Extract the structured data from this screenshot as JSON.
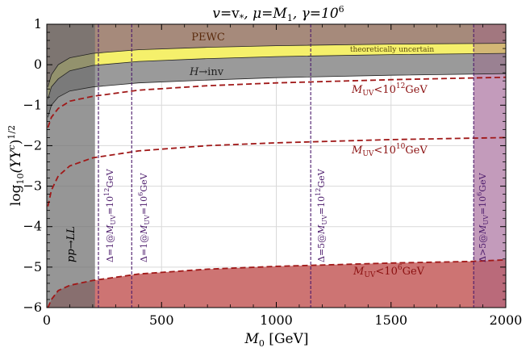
{
  "chart_data": {
    "type": "area",
    "title": "v=v*, μ=M1, γ=10^6",
    "title_parts": {
      "a": "v",
      "b": "=v",
      "c": "*",
      "d": ", μ=M",
      "e": "1",
      "f": ", γ=10",
      "g": "6"
    },
    "xlabel": {
      "main": "M",
      "sub": "0",
      "unit": " [GeV]"
    },
    "ylabel": {
      "pre": "log",
      "sub": "10",
      "mid": "(YY",
      "supc": "c",
      "post": ")",
      "sup": "1/2"
    },
    "xlim": [
      0,
      2000
    ],
    "ylim": [
      -6,
      1
    ],
    "xticks": [
      "0",
      "500",
      "1000",
      "1500",
      "2000"
    ],
    "xtick_values": [
      0,
      500,
      1000,
      1500,
      2000
    ],
    "yticks": [
      "1",
      "0",
      "−1",
      "−2",
      "−3",
      "−4",
      "−5",
      "−6"
    ],
    "ytick_values": [
      1,
      0,
      -1,
      -2,
      -3,
      -4,
      -5,
      -6
    ],
    "grid": true,
    "regions": {
      "pewc": {
        "label": "PEWC",
        "boundary": {
          "x": [
            5,
            20,
            50,
            100,
            200,
            400,
            700,
            1000,
            1500,
            2000
          ],
          "y": [
            -0.55,
            -0.25,
            0.0,
            0.17,
            0.28,
            0.37,
            0.43,
            0.47,
            0.51,
            0.53
          ]
        }
      },
      "uncertain": {
        "label": "theoretically uncertain",
        "lower": {
          "x": [
            5,
            20,
            50,
            100,
            200,
            400,
            700,
            1000,
            1500,
            2000
          ],
          "y": [
            -0.85,
            -0.55,
            -0.35,
            -0.15,
            -0.02,
            0.08,
            0.15,
            0.2,
            0.25,
            0.28
          ]
        }
      },
      "higgs_inv": {
        "label_main": "H",
        "label_arrow": "→inv",
        "lower": {
          "x": [
            5,
            20,
            50,
            100,
            200,
            400,
            700,
            1000,
            1500,
            2000
          ],
          "y": [
            -1.3,
            -1.0,
            -0.8,
            -0.65,
            -0.55,
            -0.45,
            -0.38,
            -0.32,
            -0.26,
            -0.22
          ]
        }
      },
      "pp_ll": {
        "label": "pp→LL",
        "x_max": 210
      },
      "muv6": {
        "label": "M_UV<10^6 GeV",
        "boundary": {
          "x": [
            5,
            20,
            50,
            100,
            200,
            400,
            700,
            1000,
            1500,
            1850,
            2000
          ],
          "y": [
            -6.0,
            -5.8,
            -5.58,
            -5.45,
            -5.33,
            -5.17,
            -5.05,
            -4.98,
            -4.9,
            -4.86,
            -4.82
          ]
        }
      },
      "right_band": {
        "x_min": 1860,
        "x_max": 2000
      }
    },
    "series": [
      {
        "name": "M_UV<10^12 GeV",
        "label_parts": {
          "a": "M",
          "b": "UV",
          "c": "<10",
          "d": "12",
          "e": "GeV"
        },
        "x": [
          5,
          20,
          50,
          100,
          200,
          400,
          700,
          1000,
          1500,
          2000
        ],
        "y": [
          -1.55,
          -1.3,
          -1.08,
          -0.9,
          -0.78,
          -0.63,
          -0.52,
          -0.45,
          -0.37,
          -0.31
        ]
      },
      {
        "name": "M_UV<10^10 GeV",
        "label_parts": {
          "a": "M",
          "b": "UV",
          "c": "<10",
          "d": "10",
          "e": "GeV"
        },
        "x": [
          5,
          20,
          50,
          100,
          200,
          400,
          700,
          1000,
          1500,
          2000
        ],
        "y": [
          -3.5,
          -3.1,
          -2.75,
          -2.5,
          -2.3,
          -2.13,
          -2.0,
          -1.93,
          -1.85,
          -1.8
        ]
      },
      {
        "name": "M_UV<10^6 GeV",
        "label_parts": {
          "a": "M",
          "b": "UV",
          "c": "<10",
          "d": "6",
          "e": "GeV"
        },
        "x": [
          5,
          20,
          50,
          100,
          200,
          400,
          700,
          1000,
          1500,
          1850,
          2000
        ],
        "y": [
          -6.0,
          -5.8,
          -5.58,
          -5.45,
          -5.33,
          -5.17,
          -5.05,
          -4.98,
          -4.9,
          -4.86,
          -4.82
        ]
      }
    ],
    "vlines": [
      {
        "x": 225,
        "label": "Δ=1@M_UV=10^12GeV",
        "parts": {
          "a": "Δ=1@",
          "b": "M",
          "c": "UV",
          "d": "=10",
          "e": "12",
          "f": "GeV"
        }
      },
      {
        "x": 370,
        "label": "Δ=1@M_UV=10^6GeV",
        "parts": {
          "a": "Δ=1@",
          "b": "M",
          "c": "UV",
          "d": "=10",
          "e": "6",
          "f": "GeV"
        }
      },
      {
        "x": 1150,
        "label": "Δ=5@M_UV=10^12GeV",
        "parts": {
          "a": "Δ=5@",
          "b": "M",
          "c": "UV",
          "d": "=10",
          "e": "12",
          "f": "GeV"
        }
      },
      {
        "x": 1860,
        "label": "Δ>5@M_UV=10^6GeV",
        "parts": {
          "a": "Δ>5@",
          "b": "M",
          "c": "UV",
          "d": "=10",
          "e": "6",
          "f": "GeV"
        }
      }
    ],
    "colors": {
      "pewc": "#a68a7b",
      "uncertain": "#f5f06b",
      "higgs": "#9a9a9a",
      "ppll": "#6e6e6e",
      "muv6": "#cd7473",
      "right_band": "#9b5a86",
      "right_band_light": "#dcc4dc",
      "dashed": "#a01818",
      "vline": "#4b1a6b",
      "ann_red": "#8b1010",
      "grid": "#d9d9d9"
    }
  }
}
